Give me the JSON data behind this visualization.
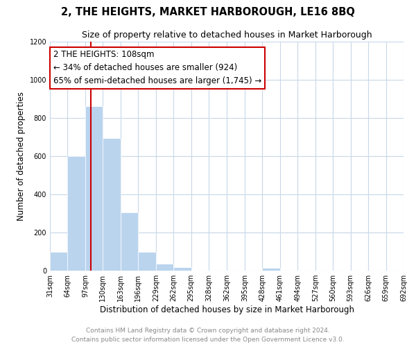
{
  "title": "2, THE HEIGHTS, MARKET HARBOROUGH, LE16 8BQ",
  "subtitle": "Size of property relative to detached houses in Market Harborough",
  "xlabel": "Distribution of detached houses by size in Market Harborough",
  "ylabel": "Number of detached properties",
  "footer_line1": "Contains HM Land Registry data © Crown copyright and database right 2024.",
  "footer_line2": "Contains public sector information licensed under the Open Government Licence v3.0.",
  "bar_edges": [
    31,
    64,
    97,
    130,
    163,
    196,
    229,
    262,
    295,
    328,
    362,
    395,
    428,
    461,
    494,
    527,
    560,
    593,
    626,
    659,
    692
  ],
  "bar_heights": [
    100,
    600,
    860,
    695,
    305,
    100,
    35,
    20,
    0,
    0,
    0,
    0,
    15,
    0,
    0,
    0,
    0,
    0,
    0,
    0
  ],
  "bar_color": "#bad4ee",
  "bar_edge_color": "#bad4ee",
  "vline_x": 108,
  "vline_color": "#cc0000",
  "annotation_title": "2 THE HEIGHTS: 108sqm",
  "annotation_line1": "← 34% of detached houses are smaller (924)",
  "annotation_line2": "65% of semi-detached houses are larger (1,745) →",
  "annotation_box_color": "#ffffff",
  "annotation_box_edge": "#cc0000",
  "ylim": [
    0,
    1200
  ],
  "yticks": [
    0,
    200,
    400,
    600,
    800,
    1000,
    1200
  ],
  "tick_labels": [
    "31sqm",
    "64sqm",
    "97sqm",
    "130sqm",
    "163sqm",
    "196sqm",
    "229sqm",
    "262sqm",
    "295sqm",
    "328sqm",
    "362sqm",
    "395sqm",
    "428sqm",
    "461sqm",
    "494sqm",
    "527sqm",
    "560sqm",
    "593sqm",
    "626sqm",
    "659sqm",
    "692sqm"
  ],
  "background_color": "#ffffff",
  "grid_color": "#c8d8e8",
  "title_fontsize": 10.5,
  "subtitle_fontsize": 9,
  "ylabel_fontsize": 8.5,
  "xlabel_fontsize": 8.5,
  "tick_fontsize": 7,
  "annotation_fontsize": 8.5,
  "footer_fontsize": 6.5,
  "footer_color": "#888888"
}
